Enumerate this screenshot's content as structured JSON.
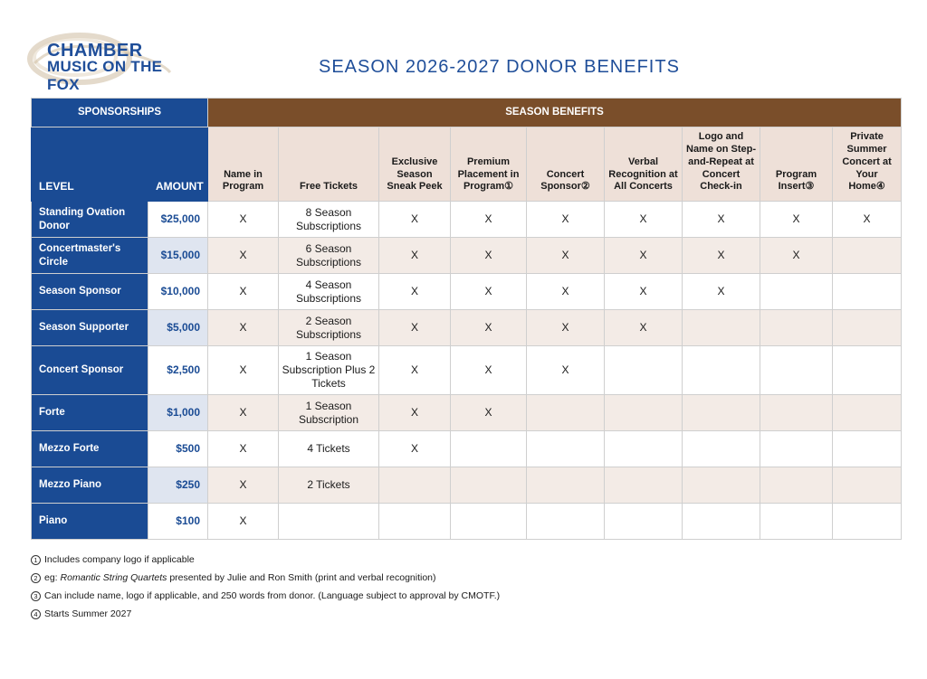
{
  "logo": {
    "line1": "CHAMBER",
    "line2": "MUSIC ON THE FOX"
  },
  "title": "SEASON 2026-2027 DONOR BENEFITS",
  "table": {
    "sponsorships_label": "SPONSORSHIPS",
    "benefits_label": "SEASON BENEFITS",
    "level_header": "LEVEL",
    "amount_header": "AMOUNT",
    "columns": [
      "Name in Program",
      "Free Tickets",
      "Exclusive Season Sneak Peek",
      "Premium Placement in Program①",
      "Concert Sponsor②",
      "Verbal Recognition at All Concerts",
      "Logo and Name on Step-and-Repeat at Concert Check-in",
      "Program Insert③",
      "Private Summer Concert at Your Home④"
    ],
    "rows": [
      {
        "level": "Standing Ovation Donor",
        "amount": "$25,000",
        "cells": [
          "X",
          "8 Season Subscriptions",
          "X",
          "X",
          "X",
          "X",
          "X",
          "X",
          "X"
        ]
      },
      {
        "level": "Concertmaster's Circle",
        "amount": "$15,000",
        "cells": [
          "X",
          "6 Season Subscriptions",
          "X",
          "X",
          "X",
          "X",
          "X",
          "X",
          ""
        ]
      },
      {
        "level": "Season Sponsor",
        "amount": "$10,000",
        "cells": [
          "X",
          "4 Season Subscriptions",
          "X",
          "X",
          "X",
          "X",
          "X",
          "",
          ""
        ]
      },
      {
        "level": "Season Supporter",
        "amount": "$5,000",
        "cells": [
          "X",
          "2 Season Subscriptions",
          "X",
          "X",
          "X",
          "X",
          "",
          "",
          ""
        ]
      },
      {
        "level": "Concert Sponsor",
        "amount": "$2,500",
        "cells": [
          "X",
          "1 Season Subscription Plus 2 Tickets",
          "X",
          "X",
          "X",
          "",
          "",
          "",
          ""
        ]
      },
      {
        "level": "Forte",
        "amount": "$1,000",
        "cells": [
          "X",
          "1 Season Subscription",
          "X",
          "X",
          "",
          "",
          "",
          "",
          ""
        ]
      },
      {
        "level": "Mezzo Forte",
        "amount": "$500",
        "cells": [
          "X",
          "4 Tickets",
          "X",
          "",
          "",
          "",
          "",
          "",
          ""
        ]
      },
      {
        "level": "Mezzo Piano",
        "amount": "$250",
        "cells": [
          "X",
          "2 Tickets",
          "",
          "",
          "",
          "",
          "",
          "",
          ""
        ]
      },
      {
        "level": "Piano",
        "amount": "$100",
        "cells": [
          "X",
          "",
          "",
          "",
          "",
          "",
          "",
          "",
          ""
        ]
      }
    ]
  },
  "footnotes": {
    "n1": {
      "mark": "1",
      "text": "Includes company logo if applicable"
    },
    "n2": {
      "mark": "2",
      "prefix": "eg:",
      "italic": "Romantic String Quartets",
      "suffix": "presented by Julie and Ron Smith (print and verbal recognition)"
    },
    "n3": {
      "mark": "3",
      "text": "Can include name, logo if applicable, and 250 words from donor. (Language subject to approval by CMOTF.)"
    },
    "n4": {
      "mark": "4",
      "text": "Starts Summer 2027"
    }
  },
  "colors": {
    "navy": "#1a4b94",
    "brown": "#7a4e2a",
    "header_tan": "#eee0d8",
    "row_alt": "#f3ebe6"
  }
}
